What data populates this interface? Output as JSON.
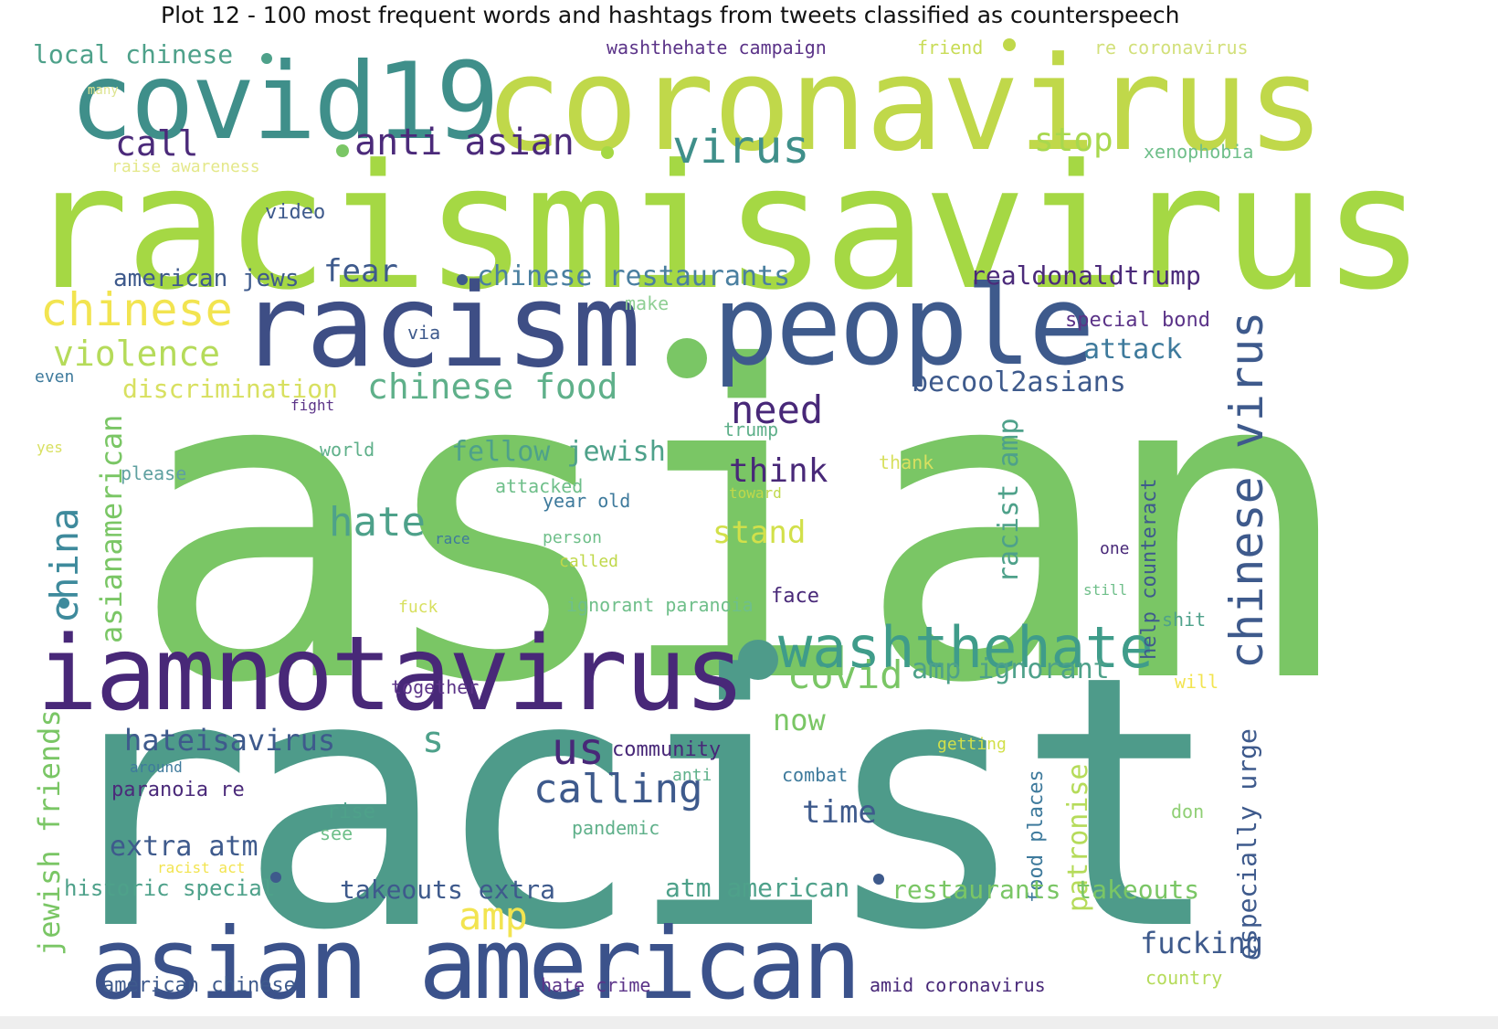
{
  "title": "Plot 12 - 100 most frequent words and hashtags from tweets classified as counterspeech",
  "colors": {
    "yellow": "#fde725",
    "lightyellow": "#d2e21b",
    "lime": "#a5db36",
    "green": "#7ad151",
    "teal": "#22a884",
    "seagreen": "#4ea18a",
    "blue": "#3e5a8c",
    "darkblue": "#3b528b",
    "purple": "#482878",
    "darkpurple": "#440154"
  },
  "words": [
    {
      "text": "racismisavirus",
      "color": "#a5d844"
    },
    {
      "text": "asian",
      "color": "#7ac665"
    },
    {
      "text": "racist",
      "color": "#4e9b8a"
    },
    {
      "text": "coronavirus",
      "color": "#c0d84a"
    },
    {
      "text": "covid19",
      "color": "#3f8f8a"
    },
    {
      "text": "racism",
      "color": "#3e4e85"
    },
    {
      "text": "people",
      "color": "#3e5a8c"
    },
    {
      "text": "iamnotavirus",
      "color": "#482878"
    },
    {
      "text": "asian american",
      "color": "#3b528b"
    },
    {
      "text": "washthehate",
      "color": "#3f9c8a"
    },
    {
      "text": "chinese virus",
      "color": "#3e5a8c"
    },
    {
      "text": "virus",
      "color": "#3f8f8a"
    },
    {
      "text": "anti asian",
      "color": "#4b2a7a"
    },
    {
      "text": "call",
      "color": "#4b2a7a"
    },
    {
      "text": "stop",
      "color": "#a8d84e"
    },
    {
      "text": "local chinese",
      "color": "#4ea18a"
    },
    {
      "text": "washthehate campaign",
      "color": "#5b3388"
    },
    {
      "text": "friend",
      "color": "#c8dc56"
    },
    {
      "text": "re coronavirus",
      "color": "#d2e07a"
    },
    {
      "text": "many",
      "color": "#dde490"
    },
    {
      "text": "raise awareness",
      "color": "#e4e88a"
    },
    {
      "text": "xenophobia",
      "color": "#6fbf8a"
    },
    {
      "text": "video",
      "color": "#3e5a8c"
    },
    {
      "text": "american jews",
      "color": "#3e5a8c"
    },
    {
      "text": "fear",
      "color": "#3e5a8c"
    },
    {
      "text": "chinese restaurants",
      "color": "#4a7fa0"
    },
    {
      "text": "realdonaldtrump",
      "color": "#4b2a7a"
    },
    {
      "text": "make",
      "color": "#8fcf94"
    },
    {
      "text": "special bond",
      "color": "#5b3388"
    },
    {
      "text": "chinese",
      "color": "#f2e450"
    },
    {
      "text": "violence",
      "color": "#b5db5a"
    },
    {
      "text": "via",
      "color": "#3e5a8c"
    },
    {
      "text": "attack",
      "color": "#3e7a9c"
    },
    {
      "text": "even",
      "color": "#3e7a9c"
    },
    {
      "text": "discrimination",
      "color": "#d8e060"
    },
    {
      "text": "chinese food",
      "color": "#5fb08a"
    },
    {
      "text": "becool2asians",
      "color": "#3e5a8c"
    },
    {
      "text": "need",
      "color": "#482878"
    },
    {
      "text": "fight",
      "color": "#5b3388"
    },
    {
      "text": "trump",
      "color": "#5fb08a"
    },
    {
      "text": "asianamerican",
      "color": "#7ac665"
    },
    {
      "text": "china",
      "color": "#3e8a9c"
    },
    {
      "text": "world",
      "color": "#5fb08a"
    },
    {
      "text": "yes",
      "color": "#d8e060"
    },
    {
      "text": "please",
      "color": "#5fa0a0"
    },
    {
      "text": "fellow jewish",
      "color": "#4ea18a"
    },
    {
      "text": "attacked",
      "color": "#6fbf8a"
    },
    {
      "text": "think",
      "color": "#482878"
    },
    {
      "text": "thank",
      "color": "#d8e060"
    },
    {
      "text": "toward",
      "color": "#c0d84a"
    },
    {
      "text": "year old",
      "color": "#3e7a9c"
    },
    {
      "text": "racist amp",
      "color": "#4ea18a"
    },
    {
      "text": "help counteract",
      "color": "#3e5a8c"
    },
    {
      "text": "hate",
      "color": "#4ea18a"
    },
    {
      "text": "race",
      "color": "#3e7a9c"
    },
    {
      "text": "person",
      "color": "#6fbf8a"
    },
    {
      "text": "stand",
      "color": "#d2e04a"
    },
    {
      "text": "called",
      "color": "#c0d84a"
    },
    {
      "text": "one",
      "color": "#482878"
    },
    {
      "text": "still",
      "color": "#6fbf8a"
    },
    {
      "text": "face",
      "color": "#482878"
    },
    {
      "text": "fuck",
      "color": "#d8e060"
    },
    {
      "text": "ignorant paranoia",
      "color": "#6fbf8a"
    },
    {
      "text": "shit",
      "color": "#4ea18a"
    },
    {
      "text": "covid",
      "color": "#7ac665"
    },
    {
      "text": "amp ignorant",
      "color": "#4ea18a"
    },
    {
      "text": "together",
      "color": "#5b3388"
    },
    {
      "text": "will",
      "color": "#f2e450"
    },
    {
      "text": "now",
      "color": "#7ac665"
    },
    {
      "text": "jewish friends",
      "color": "#7ac665"
    },
    {
      "text": "hateisavirus",
      "color": "#3e5a8c"
    },
    {
      "text": "s",
      "color": "#4ea18a"
    },
    {
      "text": "us",
      "color": "#482878"
    },
    {
      "text": "community",
      "color": "#482878"
    },
    {
      "text": "around",
      "color": "#3e7a9c"
    },
    {
      "text": "anti",
      "color": "#5fb08a"
    },
    {
      "text": "combat",
      "color": "#3e7a9c"
    },
    {
      "text": "getting",
      "color": "#d2e04a"
    },
    {
      "text": "paranoia re",
      "color": "#4b2a7a"
    },
    {
      "text": "calling",
      "color": "#3e5a8c"
    },
    {
      "text": "time",
      "color": "#3e5a8c"
    },
    {
      "text": "food places",
      "color": "#3e7a9c"
    },
    {
      "text": "patronise",
      "color": "#b5db5a"
    },
    {
      "text": "especially urge",
      "color": "#3e5a8c"
    },
    {
      "text": "rise",
      "color": "#4ea18a"
    },
    {
      "text": "see",
      "color": "#6fbf8a"
    },
    {
      "text": "pandemic",
      "color": "#5fb08a"
    },
    {
      "text": "don",
      "color": "#8fcf74"
    },
    {
      "text": "extra atm",
      "color": "#3e5a8c"
    },
    {
      "text": "racist act",
      "color": "#f2e450"
    },
    {
      "text": "historic special",
      "color": "#4ea18a"
    },
    {
      "text": "takeouts extra",
      "color": "#3e5a8c"
    },
    {
      "text": "atm american",
      "color": "#4ea18a"
    },
    {
      "text": "restaurants takeouts",
      "color": "#7ac665"
    },
    {
      "text": "amp",
      "color": "#f2e450"
    },
    {
      "text": "fucking",
      "color": "#3e5a8c"
    },
    {
      "text": "american chinese",
      "color": "#3e5a8c"
    },
    {
      "text": "hate crime",
      "color": "#5b3388"
    },
    {
      "text": "amid coronavirus",
      "color": "#482878"
    },
    {
      "text": "country",
      "color": "#b5db5a"
    }
  ]
}
